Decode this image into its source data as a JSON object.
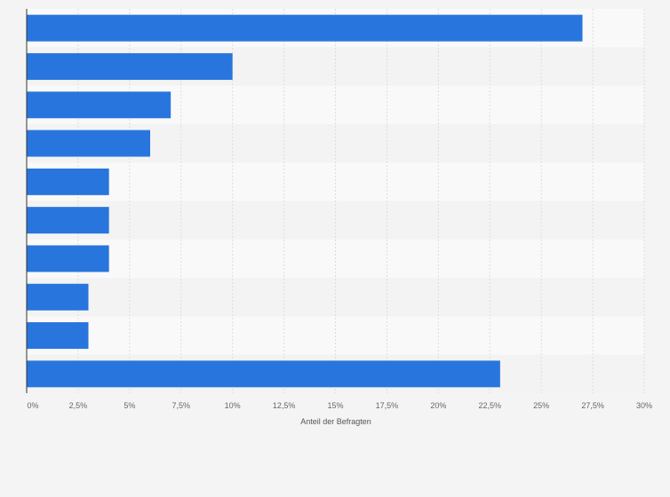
{
  "chart_data": {
    "type": "bar",
    "orientation": "horizontal",
    "categories": [
      "",
      "",
      "",
      "",
      "",
      "",
      "",
      "",
      "",
      ""
    ],
    "values": [
      27,
      10,
      7,
      6,
      4,
      4,
      4,
      3,
      3,
      23
    ],
    "xlabel": "Anteil der Befragten",
    "ylabel": "",
    "xlim": [
      0,
      30
    ],
    "x_ticks": [
      0,
      2.5,
      5,
      7.5,
      10,
      12.5,
      15,
      17.5,
      20,
      22.5,
      25,
      27.5,
      30
    ],
    "x_tick_labels": [
      "0%",
      "2,5%",
      "5%",
      "7,5%",
      "10%",
      "12,5%",
      "15%",
      "17,5%",
      "20%",
      "22,5%",
      "25%",
      "27,5%",
      "30%"
    ],
    "grid": true,
    "colors": {
      "bar": "#2876dd",
      "background": "#f4f4f4",
      "row_band_light": "#f9f9f9",
      "row_band_dark": "#f3f3f3",
      "grid": "#dddddd",
      "axis": "#333333",
      "tick_text": "#666666"
    }
  }
}
